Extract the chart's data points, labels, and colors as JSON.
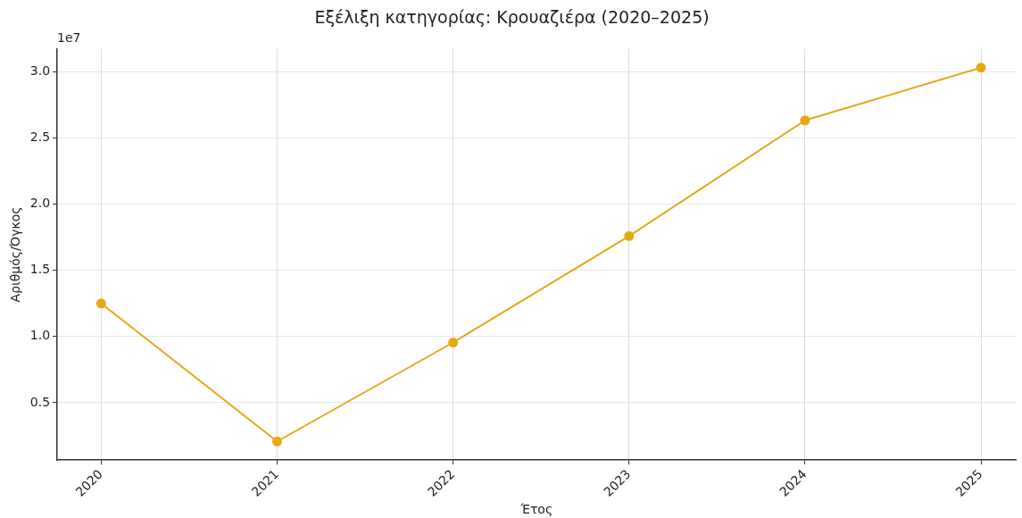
{
  "chart_data": {
    "type": "line",
    "title": "Εξέλιξη κατηγορίας: Κρουαζιέρα (2020–2025)",
    "xlabel": "Έτος",
    "ylabel": "Αριθμός/Όγκος",
    "annotations": [
      "1e7"
    ],
    "x": [
      2020,
      2021,
      2022,
      2023,
      2024,
      2025
    ],
    "series": [
      {
        "color": "#e6a817",
        "values": [
          1.25,
          0.207,
          0.955,
          1.76,
          2.635,
          3.034
        ]
      }
    ],
    "xlim": [
      2019.75,
      2025.2
    ],
    "xticks": [
      2020,
      2021,
      2022,
      2023,
      2024,
      2025
    ],
    "ylim": [
      0.066,
      3.175
    ],
    "yticks": [
      0.5,
      {
        "value": 1,
        "label": "1.0"
      },
      1.5,
      {
        "value": 2,
        "label": "2.0"
      },
      2.5,
      {
        "value": 3,
        "label": "3.0"
      }
    ],
    "grid": true,
    "legend": false,
    "marker": "circle",
    "line_style": "solid"
  }
}
